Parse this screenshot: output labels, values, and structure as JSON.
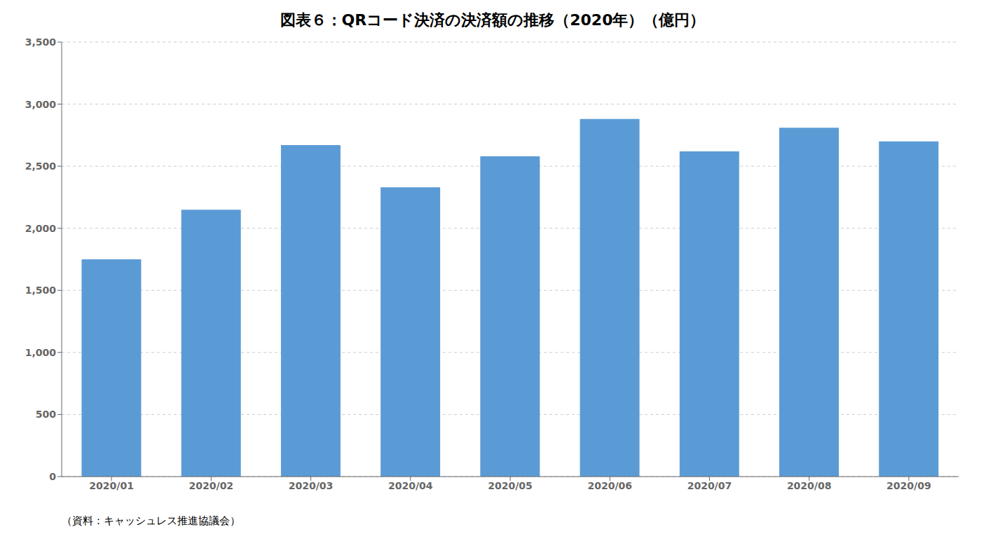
{
  "chart_data": {
    "type": "bar",
    "title": "図表６：QRコード決済の決済額の推移（2020年）（億円）",
    "categories": [
      "2020/01",
      "2020/02",
      "2020/03",
      "2020/04",
      "2020/05",
      "2020/06",
      "2020/07",
      "2020/08",
      "2020/09"
    ],
    "values": [
      1750,
      2150,
      2670,
      2330,
      2580,
      2880,
      2620,
      2810,
      2700
    ],
    "color": "#5B9BD5",
    "ylim": [
      0,
      3500
    ],
    "yticks": [
      0,
      500,
      {
        "value": 1000,
        "label": "1,000"
      },
      {
        "value": 1500,
        "label": "1,500"
      },
      {
        "value": 2000,
        "label": "2,000"
      },
      {
        "value": 2500,
        "label": "2,500"
      },
      {
        "value": 3000,
        "label": "3,000"
      },
      {
        "value": 3500,
        "label": "3,500"
      }
    ],
    "grid": true,
    "annotations": [
      "（資料：キャッシュレス推進協議会）"
    ]
  }
}
